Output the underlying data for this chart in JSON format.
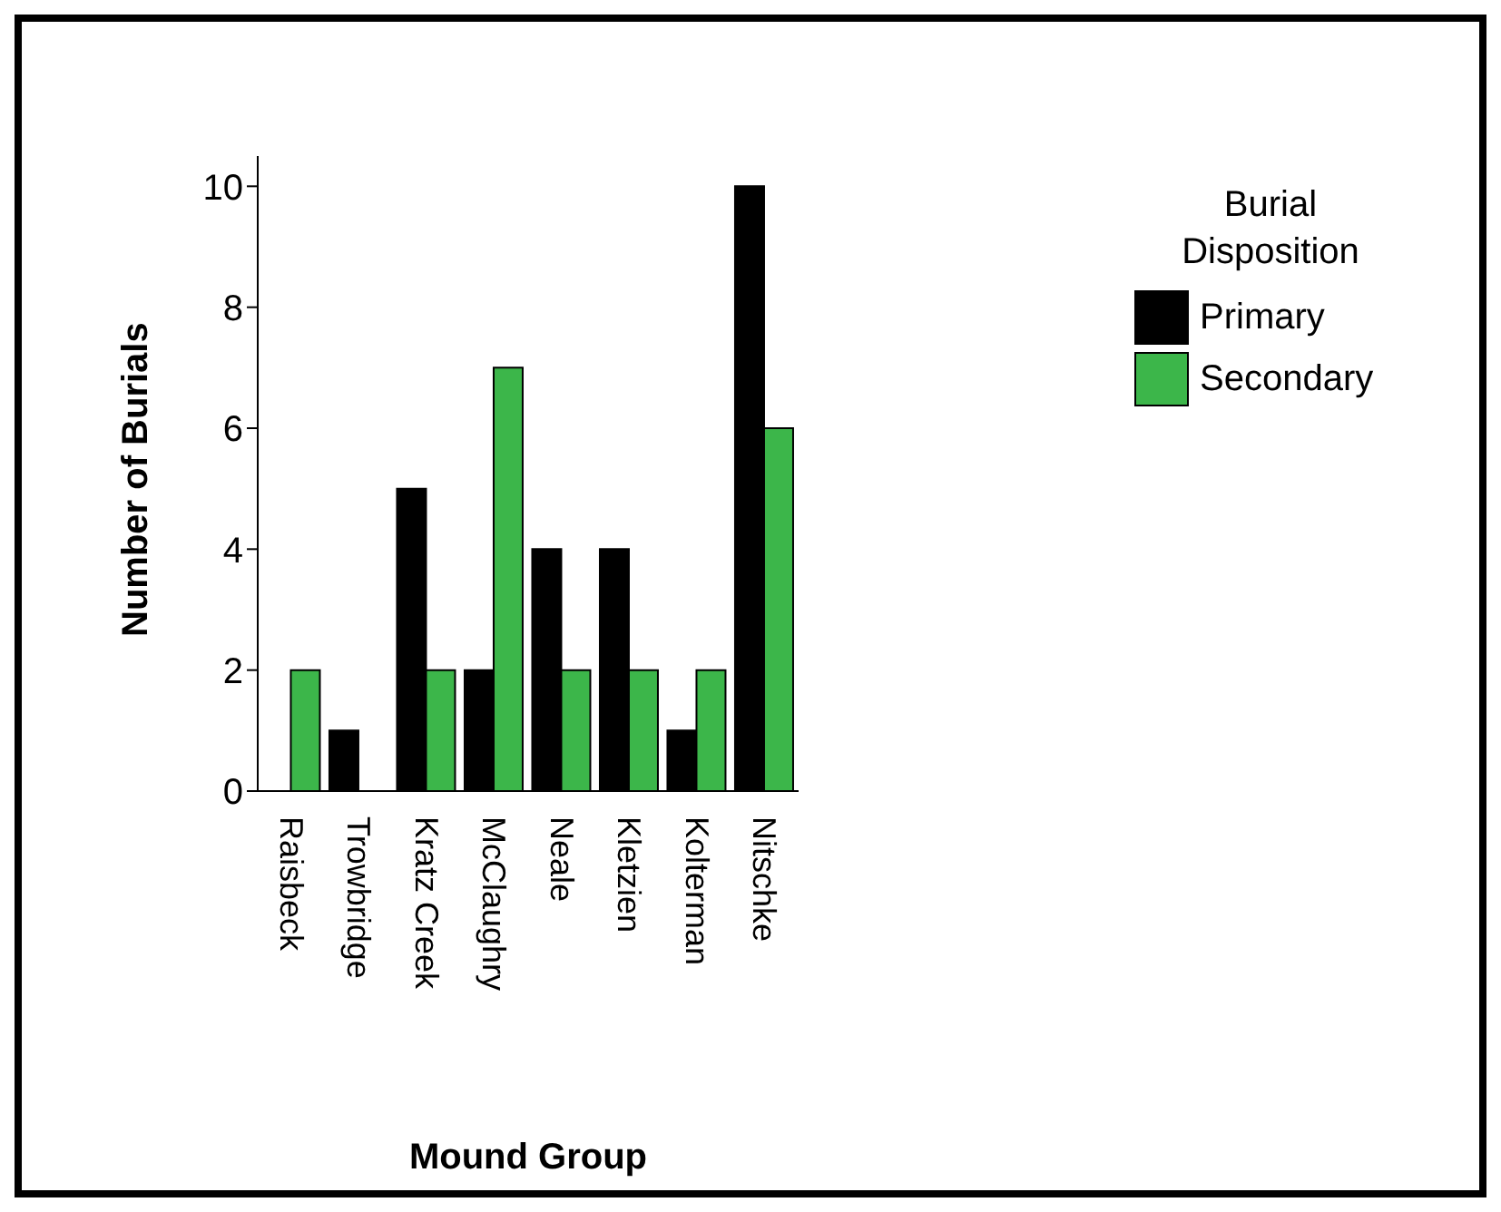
{
  "chart_data": {
    "type": "bar",
    "xlabel": "Mound Group",
    "ylabel": "Number of Burials",
    "legend_title": "Burial Disposition",
    "categories": [
      "Raisbeck",
      "Trowbridge",
      "Kratz Creek",
      "McClaughry",
      "Neale",
      "Kletzien",
      "Kolterman",
      "Nitschke"
    ],
    "series": [
      {
        "name": "Primary",
        "color": "#000000",
        "values": [
          0,
          1,
          5,
          2,
          4,
          4,
          1,
          10
        ]
      },
      {
        "name": "Secondary",
        "color": "#3cb64a",
        "values": [
          2,
          0,
          2,
          7,
          2,
          2,
          2,
          6
        ]
      }
    ],
    "ylim": [
      0,
      10.5
    ],
    "yticks": [
      0,
      2,
      4,
      6,
      8,
      10
    ],
    "grid": false,
    "legend": "right"
  }
}
